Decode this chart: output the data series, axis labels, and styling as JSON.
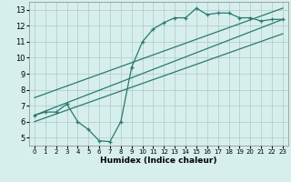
{
  "xlabel": "Humidex (Indice chaleur)",
  "bg_color": "#d6eeec",
  "grid_color": "#b0c8c8",
  "line_color": "#2a7a70",
  "xlim": [
    -0.5,
    23.5
  ],
  "ylim": [
    4.5,
    13.5
  ],
  "xticks": [
    0,
    1,
    2,
    3,
    4,
    5,
    6,
    7,
    8,
    9,
    10,
    11,
    12,
    13,
    14,
    15,
    16,
    17,
    18,
    19,
    20,
    21,
    22,
    23
  ],
  "yticks": [
    5,
    6,
    7,
    8,
    9,
    10,
    11,
    12,
    13
  ],
  "curve1_x": [
    0,
    1,
    2,
    3,
    4,
    5,
    6,
    7,
    8,
    9,
    10,
    11,
    12,
    13,
    14,
    15,
    16,
    17,
    18,
    19,
    20,
    21,
    22,
    23
  ],
  "curve1_y": [
    6.4,
    6.6,
    6.6,
    7.1,
    6.0,
    5.5,
    4.8,
    4.75,
    6.0,
    9.4,
    11.0,
    11.8,
    12.2,
    12.5,
    12.5,
    13.1,
    12.7,
    12.8,
    12.8,
    12.5,
    12.5,
    12.3,
    12.4,
    12.4
  ],
  "line1_x": [
    0,
    23
  ],
  "line1_y": [
    6.4,
    12.4
  ],
  "line2_x": [
    0,
    23
  ],
  "line2_y": [
    7.5,
    13.1
  ],
  "line3_x": [
    0,
    23
  ],
  "line3_y": [
    6.0,
    11.5
  ]
}
